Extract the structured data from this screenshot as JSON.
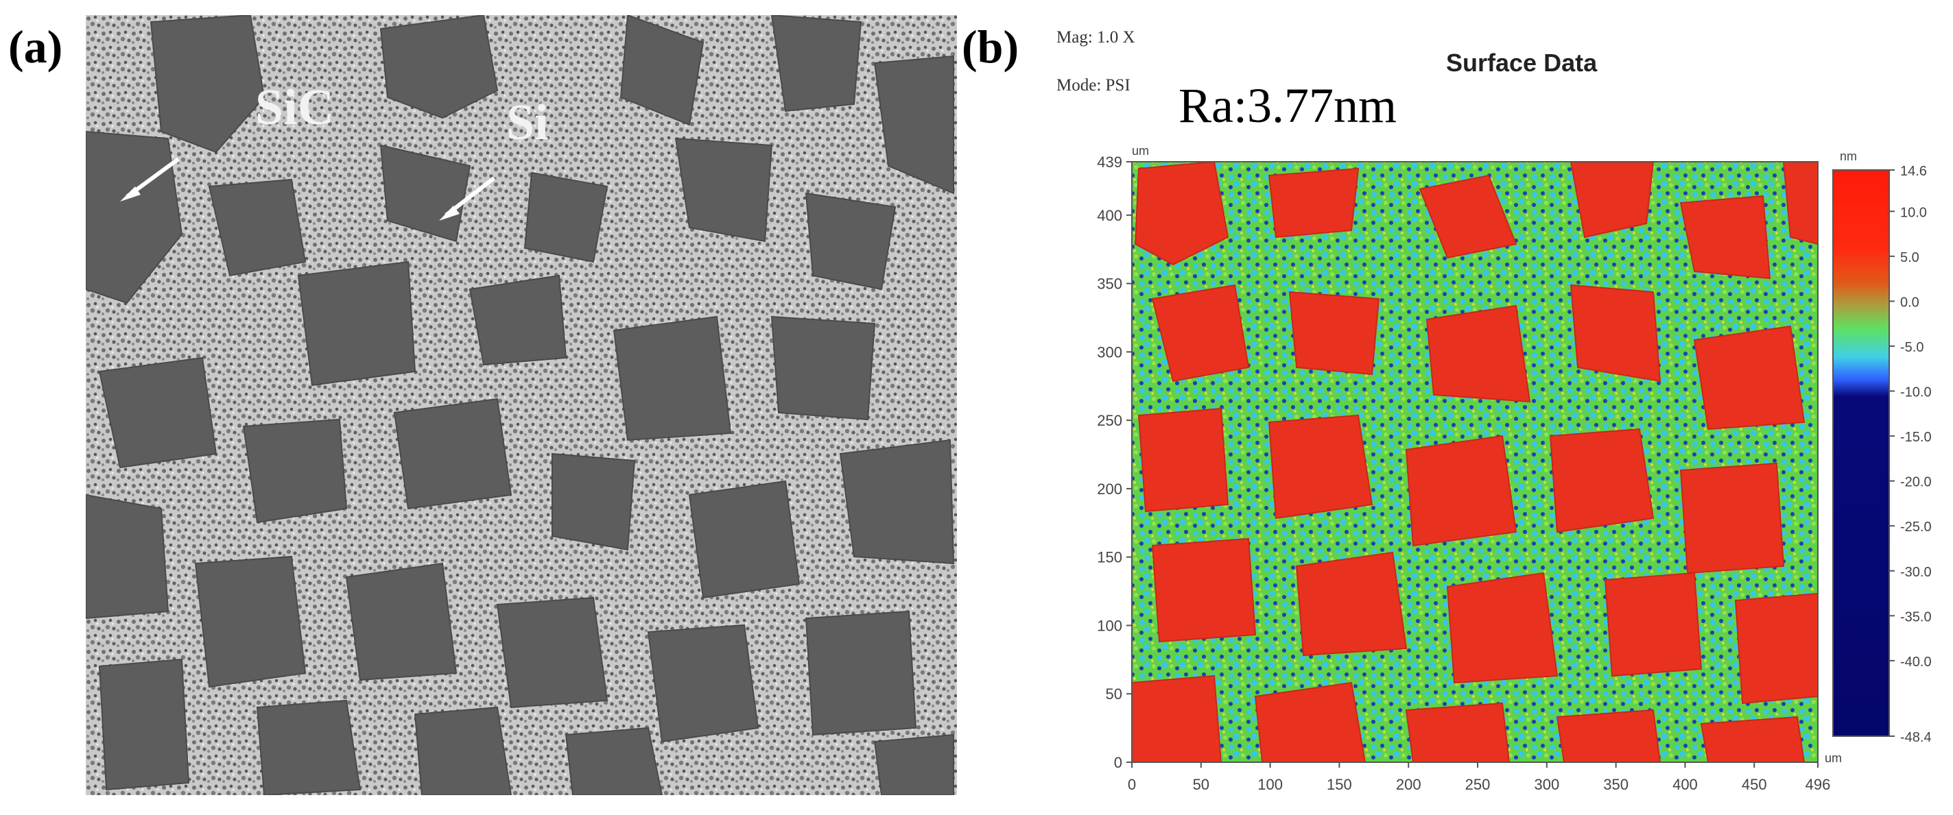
{
  "panel_a": {
    "label": "(a)",
    "phase_labels": {
      "sic": "SiC",
      "si": "Si"
    }
  },
  "panel_b": {
    "label": "(b)",
    "mag": "Mag:  1.0 X",
    "mode": "Mode:  PSI",
    "title": "Surface Data",
    "roughness": "Ra:3.77nm",
    "x_unit": "um",
    "y_unit": "um",
    "colorbar_unit": "nm",
    "x_ticks": [
      "0",
      "50",
      "100",
      "150",
      "200",
      "250",
      "300",
      "350",
      "400",
      "450",
      "496"
    ],
    "y_ticks": [
      "0",
      "50",
      "100",
      "150",
      "200",
      "250",
      "300",
      "350",
      "400",
      "439"
    ],
    "colorbar_ticks": [
      "14.6",
      "10.0",
      "5.0",
      "0.0",
      "-5.0",
      "-10.0",
      "-15.0",
      "-20.0",
      "-25.0",
      "-30.0",
      "-35.0",
      "-40.0",
      "-48.4"
    ],
    "colors": {
      "grain": "#e8321f",
      "matrix_green": "#5fd24a",
      "matrix_cyan": "#37c6e8",
      "matrix_blue": "#1a3fb8",
      "deep_blue": "#0a0a7a"
    }
  }
}
